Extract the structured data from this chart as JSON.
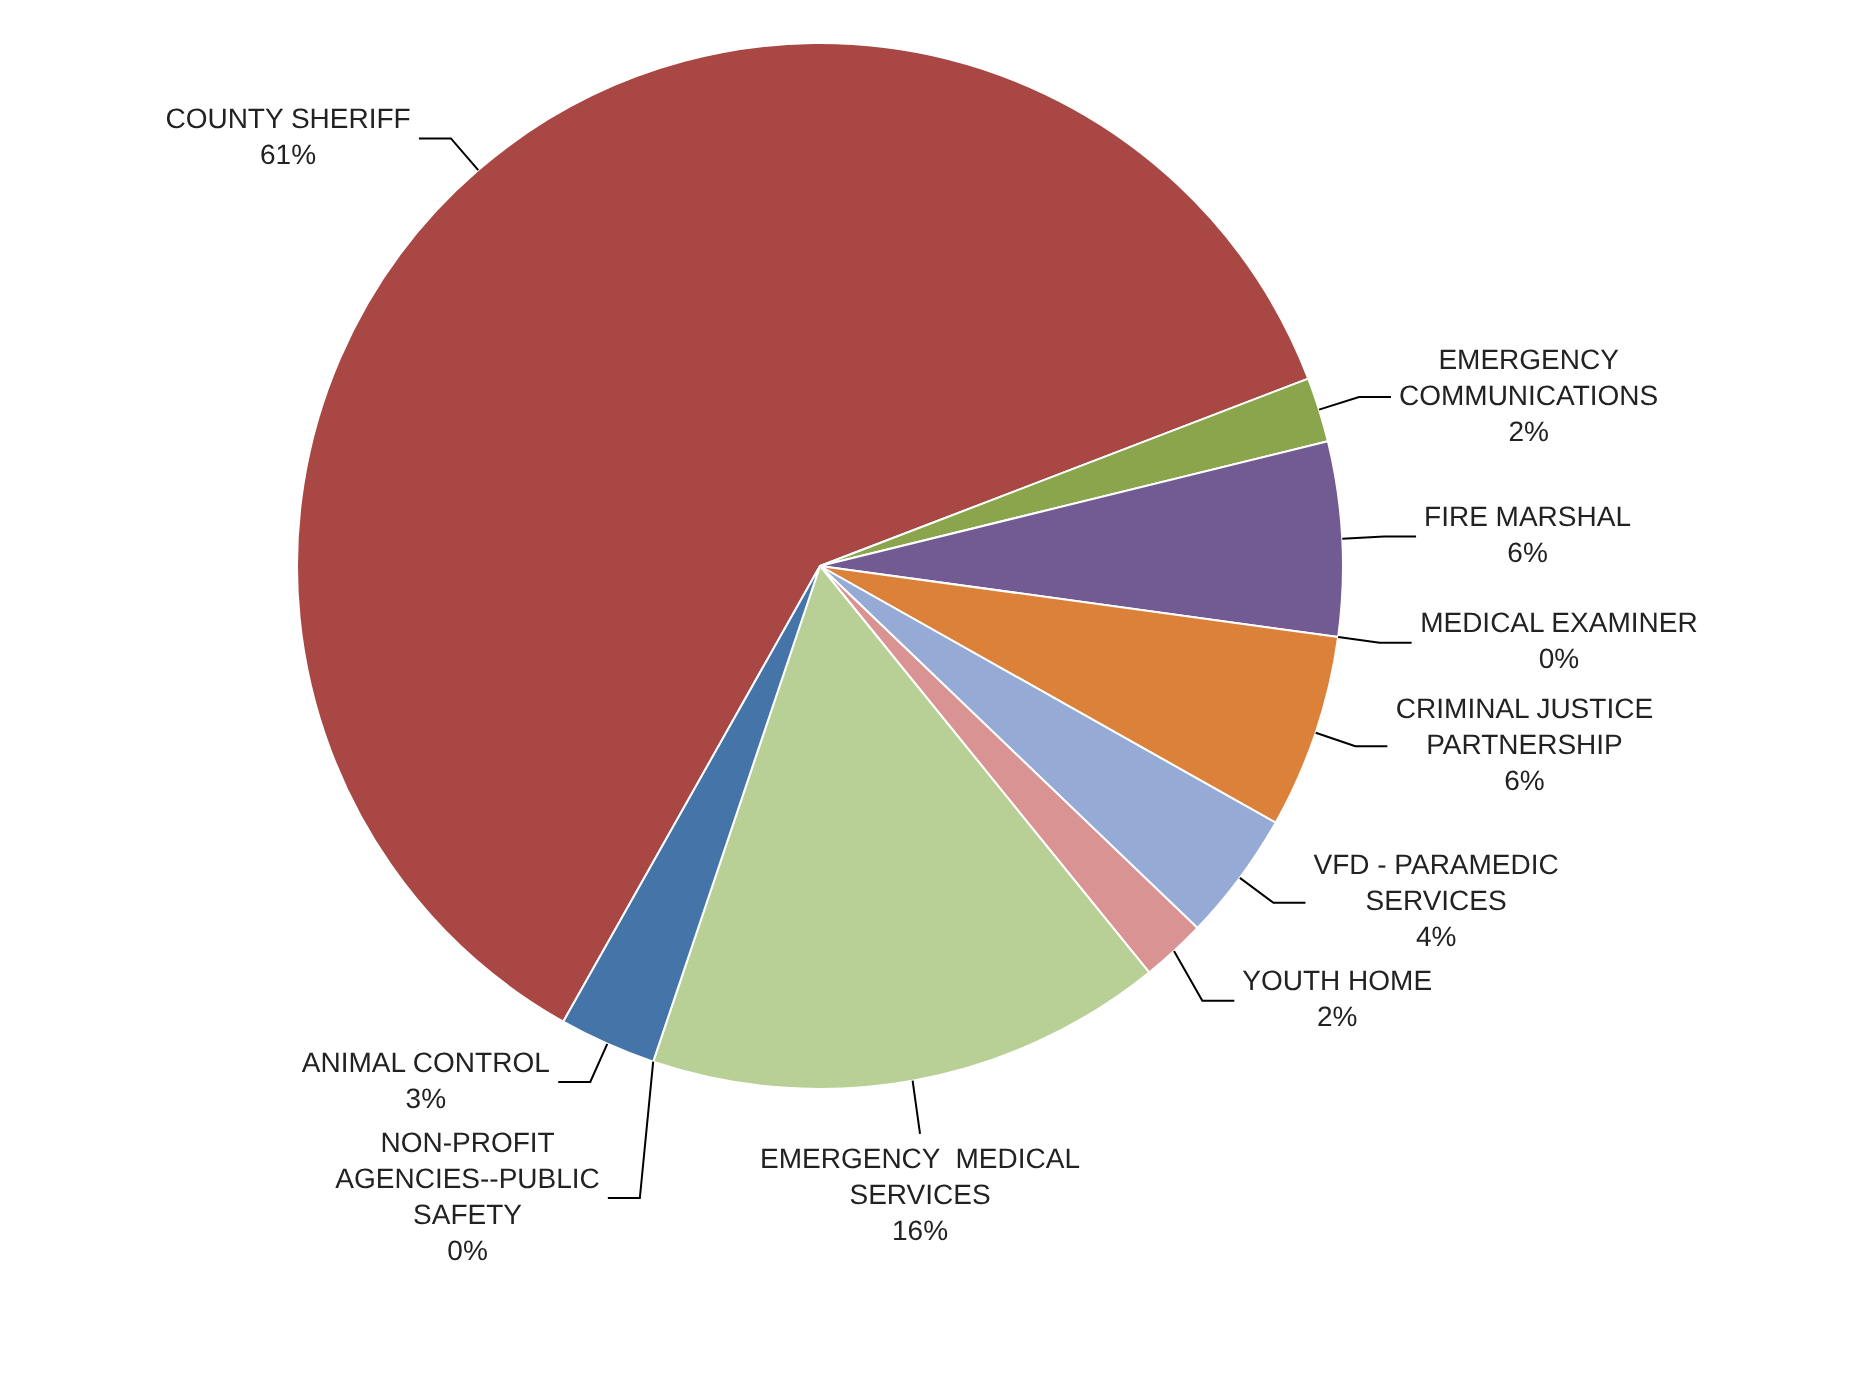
{
  "chart_data": {
    "type": "pie",
    "categories": [
      "COUNTY SHERIFF",
      "EMERGENCY COMMUNICATIONS",
      "FIRE MARSHAL",
      "MEDICAL EXAMINER",
      "CRIMINAL JUSTICE PARTNERSHIP",
      "VFD - PARAMEDIC SERVICES",
      "YOUTH HOME",
      "EMERGENCY  MEDICAL SERVICES",
      "NON-PROFIT AGENCIES--PUBLIC SAFETY",
      "ANIMAL CONTROL"
    ],
    "values": [
      61,
      2,
      6,
      0,
      6,
      4,
      2,
      16,
      0,
      3
    ],
    "value_labels": [
      "61%",
      "2%",
      "6%",
      "0%",
      "6%",
      "4%",
      "2%",
      "16%",
      "0%",
      "3%"
    ],
    "colors": [
      "#a84744",
      "#8aa54c",
      "#725a93",
      "#46a9c6",
      "#dc8139",
      "#95aad5",
      "#d99392",
      "#b8cf95",
      "#c3b9d4",
      "#4474a8"
    ]
  }
}
